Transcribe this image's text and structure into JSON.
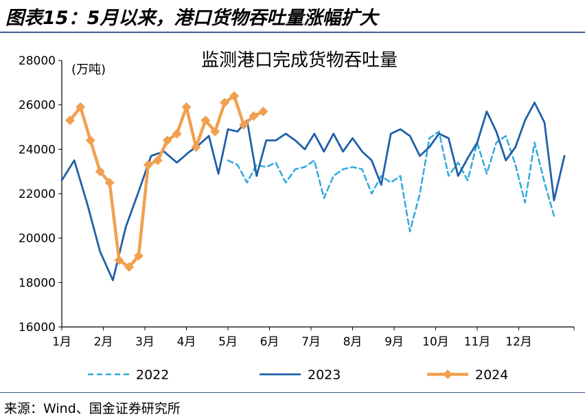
{
  "figure": {
    "title": "图表15：5月以来，港口货物吞吐量涨幅扩大",
    "source": "来源：Wind、国金证券研究所"
  },
  "colors": {
    "s2022": "#2eaadc",
    "s2023": "#1f5fa8",
    "s2024": "#f0a050",
    "rule": "#3b5a8c"
  },
  "chart_data": {
    "type": "line",
    "title": "监测港口完成货物吞吐量",
    "ylabel": "(万吨)",
    "xlabel": "",
    "ylim": [
      16000,
      28000
    ],
    "yticks": [
      16000,
      18000,
      20000,
      22000,
      24000,
      26000,
      28000
    ],
    "xlim": [
      1,
      13.2
    ],
    "xticks": [
      {
        "pos": 1,
        "label": "1月"
      },
      {
        "pos": 2,
        "label": "2月"
      },
      {
        "pos": 3,
        "label": "3月"
      },
      {
        "pos": 4,
        "label": "4月"
      },
      {
        "pos": 5,
        "label": "5月"
      },
      {
        "pos": 6,
        "label": "6月"
      },
      {
        "pos": 7,
        "label": "7月"
      },
      {
        "pos": 8,
        "label": "8月"
      },
      {
        "pos": 9,
        "label": "9月"
      },
      {
        "pos": 10,
        "label": "10月"
      },
      {
        "pos": 11,
        "label": "11月"
      },
      {
        "pos": 12,
        "label": "12月"
      }
    ],
    "legend_position": "bottom",
    "series": [
      {
        "name": "2022",
        "style": "dashed",
        "x": [
          5.0,
          5.23,
          5.46,
          5.69,
          5.92,
          6.15,
          6.39,
          6.62,
          6.85,
          7.08,
          7.31,
          7.54,
          7.77,
          8.0,
          8.23,
          8.46,
          8.69,
          8.92,
          9.15,
          9.38,
          9.62,
          9.85,
          10.08,
          10.31,
          10.54,
          10.77,
          11.0,
          11.23,
          11.46,
          11.69,
          11.92,
          12.15,
          12.38,
          12.62,
          12.85
        ],
        "values": [
          23500,
          23300,
          22500,
          23300,
          23200,
          23400,
          22500,
          23100,
          23200,
          23500,
          21800,
          22800,
          23100,
          23200,
          23100,
          22000,
          22800,
          22500,
          22800,
          20300,
          22000,
          24500,
          24800,
          22800,
          23400,
          22600,
          24300,
          22900,
          24300,
          24600,
          23300,
          21600,
          24300,
          22500,
          21000
        ]
      },
      {
        "name": "2023",
        "style": "solid",
        "x": [
          1.0,
          1.3,
          1.62,
          1.92,
          2.23,
          2.54,
          2.85,
          3.15,
          3.46,
          3.77,
          4.08,
          4.3,
          4.54,
          4.77,
          5.0,
          5.23,
          5.46,
          5.69,
          5.92,
          6.15,
          6.39,
          6.62,
          6.85,
          7.08,
          7.31,
          7.54,
          7.77,
          8.0,
          8.23,
          8.46,
          8.69,
          8.92,
          9.15,
          9.38,
          9.62,
          9.85,
          10.08,
          10.31,
          10.54,
          10.77,
          11.0,
          11.23,
          11.46,
          11.69,
          11.92,
          12.15,
          12.38,
          12.62,
          12.85,
          13.1
        ],
        "values": [
          22600,
          23500,
          21500,
          19400,
          18100,
          20500,
          22100,
          23700,
          23900,
          23400,
          23900,
          24200,
          24600,
          22900,
          24900,
          24800,
          25300,
          22800,
          24400,
          24400,
          24700,
          24400,
          24000,
          24700,
          23900,
          24700,
          23900,
          24500,
          23900,
          23500,
          22400,
          24700,
          24900,
          24600,
          23700,
          24100,
          24700,
          24500,
          22800,
          23600,
          24300,
          25700,
          24800,
          23500,
          24100,
          25300,
          26100,
          25200,
          21700,
          23700
        ]
      },
      {
        "name": "2024",
        "style": "solid-marker",
        "x": [
          1.2,
          1.45,
          1.69,
          1.92,
          2.15,
          2.38,
          2.62,
          2.85,
          3.08,
          3.31,
          3.54,
          3.77,
          4.0,
          4.23,
          4.46,
          4.69,
          4.92,
          5.15,
          5.38,
          5.62,
          5.85
        ],
        "values": [
          25300,
          25900,
          24400,
          23000,
          22500,
          19000,
          18700,
          19200,
          23300,
          23500,
          24400,
          24700,
          25900,
          24100,
          25300,
          24800,
          26100,
          26400,
          25100,
          25500,
          25700
        ]
      }
    ]
  }
}
